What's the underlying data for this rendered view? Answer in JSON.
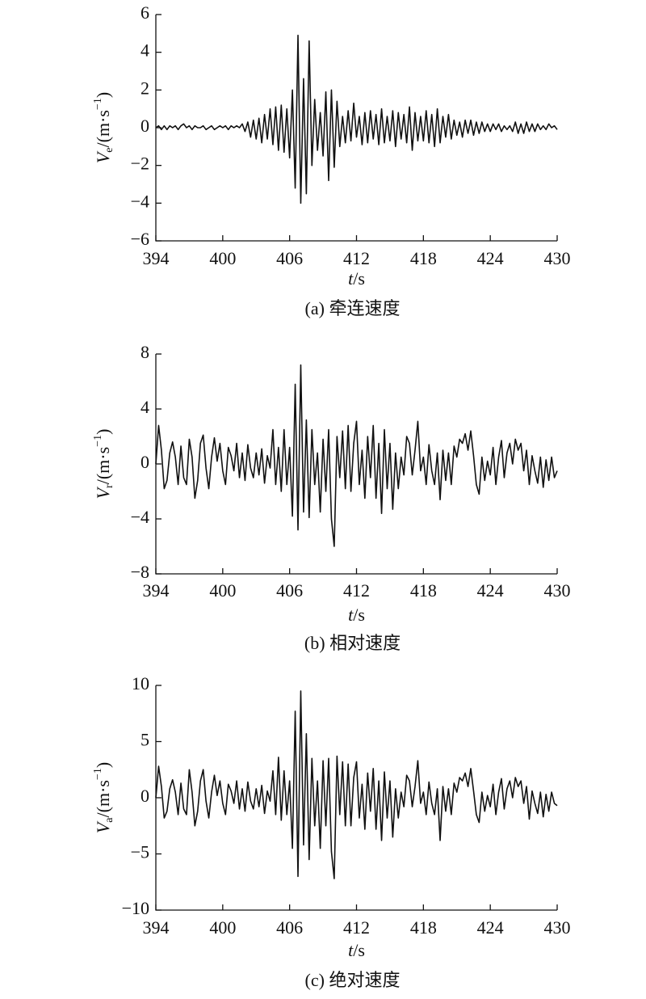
{
  "chart_data": [
    {
      "type": "line",
      "caption": "(a) 牵连速度",
      "xlabel": [
        "t",
        "/s"
      ],
      "ylabel": [
        "V",
        "e",
        "/(m·s",
        "−1",
        ")"
      ],
      "x": [
        394,
        394.25,
        394.5,
        394.75,
        395,
        395.25,
        395.5,
        395.75,
        396,
        396.25,
        396.5,
        396.75,
        397,
        397.25,
        397.5,
        397.75,
        398,
        398.25,
        398.5,
        398.75,
        399,
        399.25,
        399.5,
        399.75,
        400,
        400.25,
        400.5,
        400.75,
        401,
        401.25,
        401.5,
        401.75,
        402,
        402.25,
        402.5,
        402.75,
        403,
        403.25,
        403.5,
        403.75,
        404,
        404.25,
        404.5,
        404.75,
        405,
        405.25,
        405.5,
        405.75,
        406,
        406.25,
        406.5,
        406.75,
        407,
        407.25,
        407.5,
        407.75,
        408,
        408.25,
        408.5,
        408.75,
        409,
        409.25,
        409.5,
        409.75,
        410,
        410.25,
        410.5,
        410.75,
        411,
        411.25,
        411.5,
        411.75,
        412,
        412.25,
        412.5,
        412.75,
        413,
        413.25,
        413.5,
        413.75,
        414,
        414.25,
        414.5,
        414.75,
        415,
        415.25,
        415.5,
        415.75,
        416,
        416.25,
        416.5,
        416.75,
        417,
        417.25,
        417.5,
        417.75,
        418,
        418.25,
        418.5,
        418.75,
        419,
        419.25,
        419.5,
        419.75,
        420,
        420.25,
        420.5,
        420.75,
        421,
        421.25,
        421.5,
        421.75,
        422,
        422.25,
        422.5,
        422.75,
        423,
        423.25,
        423.5,
        423.75,
        424,
        424.25,
        424.5,
        424.75,
        425,
        425.25,
        425.5,
        425.75,
        426,
        426.25,
        426.5,
        426.75,
        427,
        427.25,
        427.5,
        427.75,
        428,
        428.25,
        428.5,
        428.75,
        429,
        429.25,
        429.5,
        429.75,
        430
      ],
      "series": [
        {
          "color": "#111111",
          "values": [
            0,
            0.1,
            -0.1,
            0.1,
            -0.1,
            0.1,
            0,
            0.1,
            -0.1,
            0.1,
            0.2,
            0,
            0.1,
            -0.1,
            0.1,
            0,
            0,
            0.1,
            -0.1,
            0,
            0.1,
            -0.1,
            0,
            0.1,
            0,
            0.1,
            -0.1,
            0.1,
            0,
            0.1,
            0,
            0.2,
            -0.2,
            0.3,
            -0.5,
            0.4,
            -0.6,
            0.5,
            -0.8,
            0.7,
            -0.6,
            1.0,
            -0.9,
            1.1,
            -1.2,
            1.2,
            -1.3,
            1.0,
            -1.6,
            2.0,
            -3.2,
            4.9,
            -4.0,
            2.6,
            -3.5,
            4.6,
            -2.0,
            1.5,
            -1.2,
            0.8,
            -1.5,
            1.9,
            -2.8,
            2.0,
            -2.1,
            1.4,
            -1.0,
            0.6,
            -0.8,
            0.9,
            -0.7,
            1.3,
            -0.5,
            0.6,
            -0.9,
            0.8,
            -0.8,
            0.9,
            -0.6,
            0.7,
            -0.9,
            1.0,
            -0.8,
            0.6,
            -0.7,
            0.9,
            -1.0,
            0.8,
            -0.6,
            0.7,
            -0.8,
            1.1,
            -1.2,
            0.8,
            -0.7,
            0.6,
            -0.7,
            0.9,
            -0.8,
            0.7,
            -1.0,
            1.0,
            -0.8,
            0.6,
            -0.5,
            0.7,
            -0.6,
            0.4,
            -0.4,
            0.3,
            -0.5,
            0.4,
            -0.3,
            0.4,
            -0.4,
            0.3,
            -0.3,
            0.3,
            -0.2,
            0.2,
            -0.2,
            0.2,
            -0.1,
            0.2,
            -0.2,
            0.1,
            -0.1,
            0.1,
            -0.2,
            0.3,
            -0.3,
            0.2,
            -0.3,
            0.3,
            -0.2,
            0.2,
            -0.2,
            0.2,
            -0.1,
            0.1,
            -0.1,
            0.2,
            0,
            0.1,
            -0.1
          ]
        }
      ],
      "xlim": [
        394,
        430
      ],
      "xticks": [
        394,
        400,
        406,
        412,
        418,
        424,
        430
      ],
      "ylim": [
        -6,
        6
      ],
      "yticks": [
        {
          "value": -6,
          "label": "−6"
        },
        {
          "value": -4,
          "label": "−4"
        },
        {
          "value": -2,
          "label": "−2"
        },
        0,
        2,
        4,
        6
      ]
    },
    {
      "type": "line",
      "caption": "(b) 相对速度",
      "xlabel": [
        "t",
        "/s"
      ],
      "ylabel": [
        "V",
        "r",
        "/(m·s",
        "−1",
        ")"
      ],
      "x": [
        394,
        394.25,
        394.5,
        394.75,
        395,
        395.25,
        395.5,
        395.75,
        396,
        396.25,
        396.5,
        396.75,
        397,
        397.25,
        397.5,
        397.75,
        398,
        398.25,
        398.5,
        398.75,
        399,
        399.25,
        399.5,
        399.75,
        400,
        400.25,
        400.5,
        400.75,
        401,
        401.25,
        401.5,
        401.75,
        402,
        402.25,
        402.5,
        402.75,
        403,
        403.25,
        403.5,
        403.75,
        404,
        404.25,
        404.5,
        404.75,
        405,
        405.25,
        405.5,
        405.75,
        406,
        406.25,
        406.5,
        406.75,
        407,
        407.25,
        407.5,
        407.75,
        408,
        408.25,
        408.5,
        408.75,
        409,
        409.25,
        409.5,
        409.75,
        410,
        410.25,
        410.5,
        410.75,
        411,
        411.25,
        411.5,
        411.75,
        412,
        412.25,
        412.5,
        412.75,
        413,
        413.25,
        413.5,
        413.75,
        414,
        414.25,
        414.5,
        414.75,
        415,
        415.25,
        415.5,
        415.75,
        416,
        416.25,
        416.5,
        416.75,
        417,
        417.25,
        417.5,
        417.75,
        418,
        418.25,
        418.5,
        418.75,
        419,
        419.25,
        419.5,
        419.75,
        420,
        420.25,
        420.5,
        420.75,
        421,
        421.25,
        421.5,
        421.75,
        422,
        422.25,
        422.5,
        422.75,
        423,
        423.25,
        423.5,
        423.75,
        424,
        424.25,
        424.5,
        424.75,
        425,
        425.25,
        425.5,
        425.75,
        426,
        426.25,
        426.5,
        426.75,
        427,
        427.25,
        427.5,
        427.75,
        428,
        428.25,
        428.5,
        428.75,
        429,
        429.25,
        429.5,
        429.75,
        430
      ],
      "series": [
        {
          "color": "#111111",
          "values": [
            0,
            2.8,
            1,
            -1.8,
            -1.2,
            0.8,
            1.6,
            0.5,
            -1.5,
            1.3,
            -1,
            -1.5,
            1.8,
            0.5,
            -2.5,
            -1.2,
            1.5,
            2.1,
            -0.3,
            -1.8,
            0.5,
            1.9,
            0.2,
            1.5,
            -0.5,
            -1.5,
            1.2,
            0.6,
            -0.5,
            1.5,
            -1,
            0.8,
            -1.2,
            1.4,
            -0.3,
            -1,
            0.8,
            -0.8,
            1.1,
            -1.4,
            0.6,
            -0.3,
            2.5,
            -1.5,
            1.2,
            -2.0,
            2.5,
            -1.5,
            1.2,
            -3.8,
            5.8,
            -4.8,
            7.2,
            -3.5,
            3.2,
            -3.9,
            2.5,
            -1.5,
            0.8,
            -3.5,
            1.8,
            -2.0,
            2.5,
            -4.0,
            -6.0,
            2.0,
            -1.0,
            2.4,
            -1.8,
            2.8,
            -2.0,
            1.5,
            3.1,
            -1.5,
            1.0,
            -2.5,
            2.0,
            -1.0,
            2.8,
            -2.5,
            1.5,
            -3.6,
            2.5,
            -1.8,
            1.5,
            -3.3,
            0.8,
            -1.8,
            0.5,
            -0.8,
            2.0,
            1.5,
            -0.8,
            1.0,
            3.1,
            -0.5,
            0.5,
            -1.5,
            1.4,
            -0.5,
            -1.5,
            0.8,
            -2.6,
            1.0,
            -1.2,
            0.8,
            -1.5,
            1.3,
            0.5,
            1.8,
            1.5,
            2.2,
            1.0,
            2.4,
            0.6,
            -1.5,
            -2.2,
            0.5,
            -1.2,
            0.2,
            -0.8,
            1.2,
            -1.5,
            0.5,
            1.7,
            -1.0,
            0.8,
            1.5,
            0,
            1.8,
            1,
            1.5,
            -0.5,
            1.0,
            -1.5,
            0.6,
            -0.5,
            -1.4,
            0.5,
            -1.7,
            0.3,
            -1.2,
            0.5,
            -1,
            -0.5
          ]
        }
      ],
      "xlim": [
        394,
        430
      ],
      "xticks": [
        394,
        400,
        406,
        412,
        418,
        424,
        430
      ],
      "ylim": [
        -8,
        8
      ],
      "yticks": [
        {
          "value": -8,
          "label": "−8"
        },
        {
          "value": -4,
          "label": "−4"
        },
        0,
        4,
        8
      ]
    },
    {
      "type": "line",
      "caption": "(c) 绝对速度",
      "xlabel": [
        "t",
        "/s"
      ],
      "ylabel": [
        "V",
        "a",
        "/(m·s",
        "−1",
        ")"
      ],
      "x": [
        394,
        394.25,
        394.5,
        394.75,
        395,
        395.25,
        395.5,
        395.75,
        396,
        396.25,
        396.5,
        396.75,
        397,
        397.25,
        397.5,
        397.75,
        398,
        398.25,
        398.5,
        398.75,
        399,
        399.25,
        399.5,
        399.75,
        400,
        400.25,
        400.5,
        400.75,
        401,
        401.25,
        401.5,
        401.75,
        402,
        402.25,
        402.5,
        402.75,
        403,
        403.25,
        403.5,
        403.75,
        404,
        404.25,
        404.5,
        404.75,
        405,
        405.25,
        405.5,
        405.75,
        406,
        406.25,
        406.5,
        406.75,
        407,
        407.25,
        407.5,
        407.75,
        408,
        408.25,
        408.5,
        408.75,
        409,
        409.25,
        409.5,
        409.75,
        410,
        410.25,
        410.5,
        410.75,
        411,
        411.25,
        411.5,
        411.75,
        412,
        412.25,
        412.5,
        412.75,
        413,
        413.25,
        413.5,
        413.75,
        414,
        414.25,
        414.5,
        414.75,
        415,
        415.25,
        415.5,
        415.75,
        416,
        416.25,
        416.5,
        416.75,
        417,
        417.25,
        417.5,
        417.75,
        418,
        418.25,
        418.5,
        418.75,
        419,
        419.25,
        419.5,
        419.75,
        420,
        420.25,
        420.5,
        420.75,
        421,
        421.25,
        421.5,
        421.75,
        422,
        422.25,
        422.5,
        422.75,
        423,
        423.25,
        423.5,
        423.75,
        424,
        424.25,
        424.5,
        424.75,
        425,
        425.25,
        425.5,
        425.75,
        426,
        426.25,
        426.5,
        426.75,
        427,
        427.25,
        427.5,
        427.75,
        428,
        428.25,
        428.5,
        428.75,
        429,
        429.25,
        429.5,
        429.75,
        430
      ],
      "series": [
        {
          "color": "#111111",
          "values": [
            0,
            2.8,
            1,
            -1.8,
            -1.2,
            0.8,
            1.6,
            0.5,
            -1.5,
            1.3,
            -1,
            -1.5,
            2.5,
            0.5,
            -2.5,
            -1.2,
            1.5,
            2.5,
            -0.3,
            -1.8,
            0.5,
            2.0,
            0.2,
            1.5,
            -0.5,
            -1.5,
            1.2,
            0.6,
            -0.5,
            1.5,
            -1,
            0.8,
            -1.2,
            1.4,
            -0.3,
            -1,
            0.8,
            -0.8,
            1.1,
            -1.4,
            0.6,
            -0.3,
            2.4,
            -1.5,
            3.6,
            -2.0,
            2.4,
            -1.5,
            1.5,
            -4.5,
            7.7,
            -7.0,
            9.5,
            -4.2,
            5.7,
            -5.5,
            3.5,
            -2.5,
            1.5,
            -4.5,
            3.3,
            -2.5,
            3.5,
            -4.8,
            -7.2,
            3.7,
            -1.5,
            3.2,
            -2.5,
            3.0,
            -2.5,
            1.8,
            3.2,
            -1.8,
            1.2,
            -2.8,
            2.2,
            -1.2,
            2.6,
            -2.8,
            1.5,
            -3.8,
            2.3,
            -1.8,
            1.5,
            -3.5,
            0.8,
            -1.8,
            0.5,
            -0.8,
            2.0,
            1.5,
            -0.8,
            1.0,
            3.3,
            -0.5,
            0.5,
            -1.5,
            1.4,
            -0.5,
            -1.5,
            0.8,
            -3.8,
            1.0,
            -1.2,
            0.8,
            -1.5,
            1.3,
            0.5,
            1.8,
            1.5,
            2.2,
            1.0,
            2.6,
            0.6,
            -1.5,
            -2.2,
            0.5,
            -1.2,
            0.2,
            -0.8,
            1.2,
            -1.5,
            0.5,
            1.7,
            -1.0,
            0.8,
            1.5,
            0,
            1.8,
            1,
            1.5,
            -0.5,
            1.0,
            -1.9,
            0.6,
            -0.5,
            -1.4,
            0.5,
            -1.7,
            0.3,
            -1.2,
            0.5,
            -0.5,
            -0.7
          ]
        }
      ],
      "xlim": [
        394,
        430
      ],
      "xticks": [
        394,
        400,
        406,
        412,
        418,
        424,
        430
      ],
      "ylim": [
        -10,
        10
      ],
      "yticks": [
        {
          "value": -10,
          "label": "−10"
        },
        {
          "value": -5,
          "label": "−5"
        },
        0,
        5,
        10
      ]
    }
  ]
}
